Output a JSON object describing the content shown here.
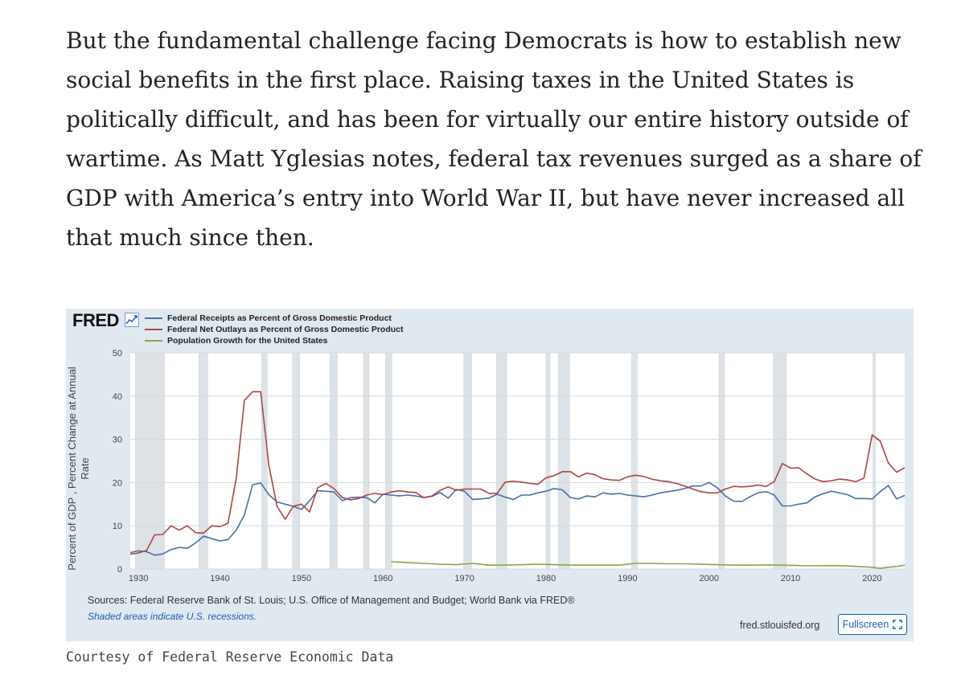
{
  "article": {
    "lines": [
      "But the fundamental challenge facing Democrats is how to establish new",
      "social benefits in the first place. Raising taxes in the United States is",
      "politically difficult, and has been for virtually our entire history outside of",
      "wartime. As Matt Yglesias notes, federal tax revenues surged as a share of",
      "GDP with America’s entry into World War II, but have never increased all",
      "that much since then."
    ]
  },
  "fred_widget": {
    "logo": "FRED",
    "sources": "Sources: Federal Reserve Bank of St. Louis; U.S. Office of Management and Budget; World Bank via FRED®",
    "recession_note": "Shaded areas indicate U.S. recessions.",
    "url": "fred.stlouisfed.org",
    "fullscreen_label": "Fullscreen"
  },
  "caption": "Courtesy of Federal Reserve Economic Data",
  "chart_data": {
    "type": "line",
    "title": "",
    "xlabel": "",
    "ylabel": "Percent of GDP , Percent Change at Annual Rate",
    "xlim": [
      1929,
      2024
    ],
    "ylim": [
      0,
      50
    ],
    "x_ticks": [
      1930,
      1940,
      1950,
      1960,
      1970,
      1980,
      1990,
      2000,
      2010,
      2020
    ],
    "y_ticks": [
      0,
      10,
      20,
      30,
      40,
      50
    ],
    "grid": true,
    "legend_position": "top-left",
    "recessions": [
      [
        1929.6,
        1933.2
      ],
      [
        1937.4,
        1938.5
      ],
      [
        1945.1,
        1945.8
      ],
      [
        1948.9,
        1949.8
      ],
      [
        1953.5,
        1954.4
      ],
      [
        1957.6,
        1958.3
      ],
      [
        1960.3,
        1961.1
      ],
      [
        1969.9,
        1970.9
      ],
      [
        1973.9,
        1975.2
      ],
      [
        1980.0,
        1980.5
      ],
      [
        1981.5,
        1982.9
      ],
      [
        1990.5,
        1991.2
      ],
      [
        2001.2,
        2001.9
      ],
      [
        2007.9,
        2009.5
      ],
      [
        2020.1,
        2020.4
      ]
    ],
    "series": [
      {
        "name": "Federal Receipts as Percent of Gross Domestic Product",
        "color": "#4572a7",
        "x": [
          1929,
          1930,
          1931,
          1932,
          1933,
          1934,
          1935,
          1936,
          1937,
          1938,
          1939,
          1940,
          1941,
          1942,
          1943,
          1944,
          1945,
          1946,
          1947,
          1948,
          1949,
          1950,
          1951,
          1952,
          1953,
          1954,
          1955,
          1956,
          1957,
          1958,
          1959,
          1960,
          1961,
          1962,
          1963,
          1964,
          1965,
          1966,
          1967,
          1968,
          1969,
          1970,
          1971,
          1972,
          1973,
          1974,
          1975,
          1976,
          1977,
          1978,
          1979,
          1980,
          1981,
          1982,
          1983,
          1984,
          1985,
          1986,
          1987,
          1988,
          1989,
          1990,
          1991,
          1992,
          1993,
          1994,
          1995,
          1996,
          1997,
          1998,
          1999,
          2000,
          2001,
          2002,
          2003,
          2004,
          2005,
          2006,
          2007,
          2008,
          2009,
          2010,
          2011,
          2012,
          2013,
          2014,
          2015,
          2016,
          2017,
          2018,
          2019,
          2020,
          2021,
          2022,
          2023,
          2024
        ],
        "values": [
          3.8,
          4.2,
          4.0,
          3.2,
          3.5,
          4.5,
          5.0,
          4.8,
          6.0,
          7.6,
          7.0,
          6.5,
          6.8,
          9.0,
          12.5,
          19.5,
          19.9,
          17.2,
          15.5,
          15.0,
          14.5,
          13.8,
          15.8,
          18.1,
          18.0,
          17.8,
          15.8,
          16.5,
          16.6,
          16.5,
          15.3,
          17.3,
          17.1,
          16.9,
          17.1,
          16.9,
          16.5,
          16.8,
          17.7,
          16.4,
          18.4,
          18.0,
          16.1,
          16.2,
          16.4,
          17.3,
          16.6,
          16.1,
          17.1,
          17.1,
          17.6,
          18.0,
          18.6,
          18.3,
          16.5,
          16.2,
          16.9,
          16.7,
          17.6,
          17.3,
          17.5,
          17.1,
          16.9,
          16.7,
          17.1,
          17.6,
          17.9,
          18.2,
          18.6,
          19.2,
          19.2,
          20.0,
          18.8,
          16.9,
          15.7,
          15.6,
          16.7,
          17.6,
          17.9,
          17.1,
          14.6,
          14.6,
          15.0,
          15.3,
          16.7,
          17.4,
          18.0,
          17.6,
          17.2,
          16.3,
          16.3,
          16.2,
          17.9,
          19.3,
          16.2,
          17.0
        ]
      },
      {
        "name": "Federal Net Outlays as Percent of Gross Domestic Product",
        "color": "#aa4643",
        "x": [
          1929,
          1930,
          1931,
          1932,
          1933,
          1934,
          1935,
          1936,
          1937,
          1938,
          1939,
          1940,
          1941,
          1942,
          1943,
          1944,
          1945,
          1946,
          1947,
          1948,
          1949,
          1950,
          1951,
          1952,
          1953,
          1954,
          1955,
          1956,
          1957,
          1958,
          1959,
          1960,
          1961,
          1962,
          1963,
          1964,
          1965,
          1966,
          1967,
          1968,
          1969,
          1970,
          1971,
          1972,
          1973,
          1974,
          1975,
          1976,
          1977,
          1978,
          1979,
          1980,
          1981,
          1982,
          1983,
          1984,
          1985,
          1986,
          1987,
          1988,
          1989,
          1990,
          1991,
          1992,
          1993,
          1994,
          1995,
          1996,
          1997,
          1998,
          1999,
          2000,
          2001,
          2002,
          2003,
          2004,
          2005,
          2006,
          2007,
          2008,
          2009,
          2010,
          2011,
          2012,
          2013,
          2014,
          2015,
          2016,
          2017,
          2018,
          2019,
          2020,
          2021,
          2022,
          2023,
          2024
        ],
        "values": [
          3.4,
          3.7,
          4.3,
          7.9,
          8.0,
          10.0,
          9.0,
          10.0,
          8.4,
          8.3,
          10.0,
          9.8,
          10.6,
          21.0,
          39.0,
          41.0,
          41.0,
          24.0,
          14.5,
          11.5,
          14.5,
          15.0,
          13.2,
          18.8,
          19.8,
          18.6,
          16.5,
          16.0,
          16.3,
          17.1,
          17.5,
          17.2,
          17.8,
          18.1,
          17.8,
          17.7,
          16.5,
          16.9,
          18.2,
          19.0,
          18.2,
          18.5,
          18.5,
          18.5,
          17.5,
          17.5,
          20.1,
          20.3,
          20.1,
          19.8,
          19.6,
          21.1,
          21.6,
          22.5,
          22.5,
          21.3,
          22.2,
          21.8,
          20.9,
          20.6,
          20.5,
          21.3,
          21.7,
          21.4,
          20.8,
          20.4,
          20.2,
          19.8,
          19.2,
          18.5,
          17.9,
          17.6,
          17.6,
          18.5,
          19.1,
          19.0,
          19.1,
          19.4,
          19.1,
          20.2,
          24.4,
          23.3,
          23.4,
          22.0,
          20.8,
          20.2,
          20.4,
          20.8,
          20.6,
          20.2,
          21.0,
          31.0,
          29.6,
          24.5,
          22.4,
          23.4
        ]
      },
      {
        "name": "Population Growth for the United States",
        "color": "#89a54e",
        "x": [
          1961,
          1963,
          1965,
          1967,
          1969,
          1971,
          1973,
          1975,
          1977,
          1979,
          1981,
          1983,
          1985,
          1987,
          1989,
          1991,
          1993,
          1995,
          1997,
          1999,
          2001,
          2003,
          2005,
          2007,
          2009,
          2011,
          2013,
          2015,
          2017,
          2019,
          2020,
          2021,
          2022,
          2023,
          2024
        ],
        "values": [
          1.7,
          1.5,
          1.3,
          1.1,
          1.0,
          1.3,
          0.9,
          0.9,
          1.0,
          1.1,
          1.0,
          0.9,
          0.9,
          0.9,
          0.9,
          1.3,
          1.3,
          1.2,
          1.2,
          1.1,
          1.0,
          0.9,
          0.9,
          0.95,
          0.9,
          0.8,
          0.75,
          0.8,
          0.7,
          0.5,
          0.4,
          0.15,
          0.4,
          0.6,
          0.9
        ]
      }
    ]
  }
}
